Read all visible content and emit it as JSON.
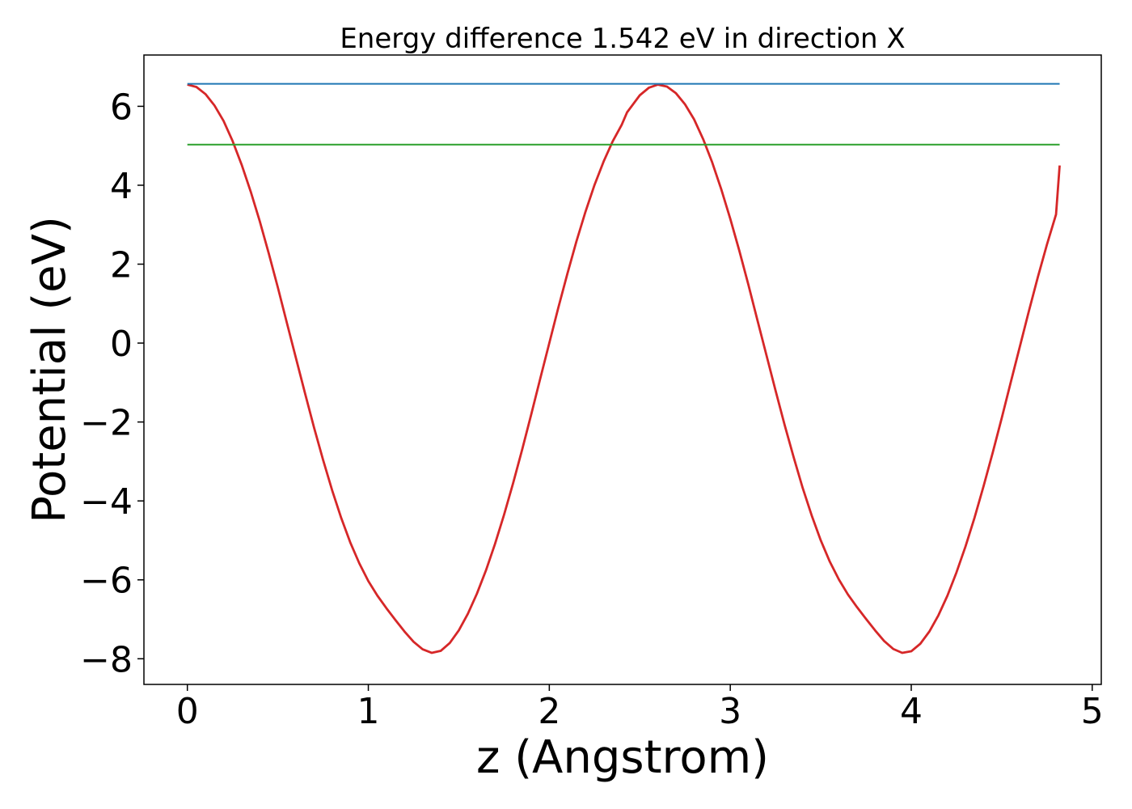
{
  "chart_data": {
    "type": "line",
    "title": "Energy difference 1.542 eV in direction X",
    "xlabel": "z (Angstrom)",
    "ylabel": "Potential (eV)",
    "xlim": [
      -0.24,
      5.05
    ],
    "ylim": [
      -8.65,
      7.3
    ],
    "xticks": [
      0,
      1,
      2,
      3,
      4,
      5
    ],
    "yticks": [
      -8,
      -6,
      -4,
      -2,
      0,
      2,
      4,
      6
    ],
    "xtick_labels": [
      "0",
      "1",
      "2",
      "3",
      "4",
      "5"
    ],
    "ytick_labels": [
      "−8",
      "−6",
      "−4",
      "−2",
      "0",
      "2",
      "4",
      "6"
    ],
    "grid": false,
    "legend": "none",
    "series": [
      {
        "color": "#d62728",
        "x": [
          0.0,
          0.05,
          0.1,
          0.15,
          0.2,
          0.25,
          0.3,
          0.35,
          0.4,
          0.45,
          0.5,
          0.55,
          0.6,
          0.65,
          0.7,
          0.75,
          0.8,
          0.85,
          0.9,
          0.95,
          1.0,
          1.05,
          1.1,
          1.15,
          1.2,
          1.25,
          1.3,
          1.35,
          1.4,
          1.45,
          1.5,
          1.55,
          1.6,
          1.65,
          1.7,
          1.75,
          1.8,
          1.85,
          1.9,
          1.95,
          2.0,
          2.05,
          2.1,
          2.15,
          2.2,
          2.25,
          2.3,
          2.35,
          2.4,
          2.43,
          2.5,
          2.55,
          2.6,
          2.65,
          2.7,
          2.75,
          2.8,
          2.85,
          2.9,
          2.95,
          3.0,
          3.05,
          3.1,
          3.15,
          3.2,
          3.25,
          3.3,
          3.35,
          3.4,
          3.45,
          3.5,
          3.55,
          3.6,
          3.65,
          3.7,
          3.75,
          3.8,
          3.85,
          3.9,
          3.95,
          4.0,
          4.05,
          4.1,
          4.15,
          4.2,
          4.25,
          4.3,
          4.35,
          4.4,
          4.45,
          4.5,
          4.55,
          4.6,
          4.65,
          4.7,
          4.75,
          4.8,
          4.82
        ],
        "y": [
          6.55,
          6.49,
          6.31,
          6.02,
          5.63,
          5.12,
          4.52,
          3.84,
          3.09,
          2.27,
          1.41,
          0.51,
          -0.38,
          -1.27,
          -2.14,
          -2.96,
          -3.73,
          -4.43,
          -5.05,
          -5.58,
          -6.03,
          -6.4,
          -6.72,
          -7.02,
          -7.31,
          -7.57,
          -7.76,
          -7.85,
          -7.8,
          -7.6,
          -7.28,
          -6.86,
          -6.35,
          -5.76,
          -5.09,
          -4.35,
          -3.55,
          -2.7,
          -1.81,
          -0.9,
          0.0,
          0.9,
          1.76,
          2.58,
          3.33,
          4.01,
          4.6,
          5.11,
          5.53,
          5.85,
          6.28,
          6.47,
          6.55,
          6.5,
          6.33,
          6.05,
          5.67,
          5.17,
          4.58,
          3.9,
          3.15,
          2.34,
          1.48,
          0.58,
          -0.31,
          -1.2,
          -2.07,
          -2.89,
          -3.67,
          -4.37,
          -5.0,
          -5.54,
          -5.99,
          -6.37,
          -6.69,
          -6.99,
          -7.28,
          -7.55,
          -7.75,
          -7.85,
          -7.81,
          -7.62,
          -7.31,
          -6.9,
          -6.4,
          -5.81,
          -5.15,
          -4.42,
          -3.62,
          -2.78,
          -1.9,
          -0.99,
          -0.09,
          0.81,
          1.68,
          2.5,
          3.26,
          4.5
        ]
      },
      {
        "color": "#1f77b4",
        "x": [
          0.0,
          4.82
        ],
        "y": [
          6.57,
          6.57
        ]
      },
      {
        "color": "#2ca02c",
        "x": [
          0.0,
          4.82
        ],
        "y": [
          5.03,
          5.03
        ]
      }
    ]
  }
}
